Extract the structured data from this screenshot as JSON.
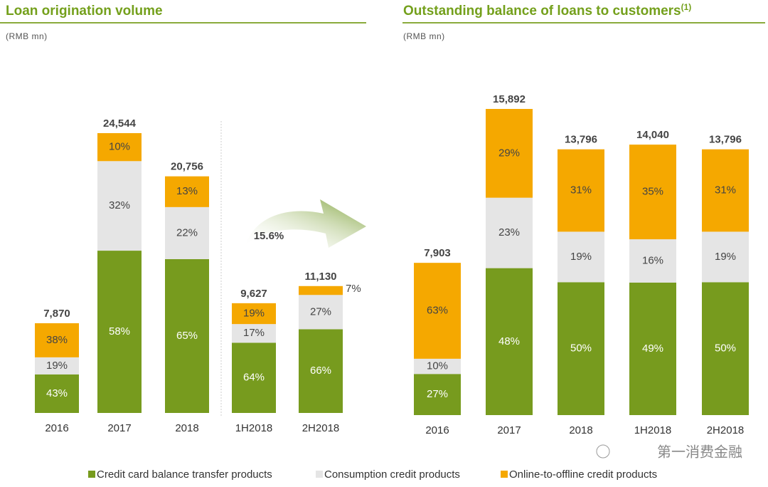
{
  "legend": [
    {
      "name": "Credit card balance transfer products",
      "color": "#779b1e"
    },
    {
      "name": "Consumption credit products",
      "color": "#e5e5e5"
    },
    {
      "name": "Online-to-offline credit products",
      "color": "#f5a800"
    }
  ],
  "watermark": "第一消费金融",
  "chart_data": [
    {
      "type": "bar",
      "title": "Loan origination volume",
      "subtitle": "(RMB mn)",
      "annotation": "15.6%",
      "categories": [
        "2016",
        "2017",
        "2018",
        "1H2018",
        "2H2018"
      ],
      "totals": [
        7870,
        24544,
        20756,
        9627,
        11130
      ],
      "total_labels": [
        "7,870",
        "24,544",
        "20,756",
        "9,627",
        "11,130"
      ],
      "series": [
        {
          "values": [
            43,
            58,
            65,
            64,
            66
          ],
          "value_labels": [
            "43%",
            "58%",
            "65%",
            "64%",
            "66%"
          ]
        },
        {
          "values": [
            19,
            32,
            22,
            17,
            27
          ],
          "value_labels": [
            "19%",
            "32%",
            "22%",
            "17%",
            "27%"
          ]
        },
        {
          "values": [
            38,
            10,
            13,
            19,
            7
          ],
          "value_labels": [
            "38%",
            "10%",
            "13%",
            "19%",
            "7%"
          ]
        }
      ]
    },
    {
      "type": "bar",
      "title": "Outstanding balance of loans to customers",
      "title_note": "(1)",
      "subtitle": "(RMB mn)",
      "categories": [
        "2016",
        "2017",
        "2018",
        "1H2018",
        "2H2018"
      ],
      "totals": [
        7903,
        15892,
        13796,
        14040,
        13796
      ],
      "total_labels": [
        "7,903",
        "15,892",
        "13,796",
        "14,040",
        "13,796"
      ],
      "series": [
        {
          "values": [
            27,
            48,
            50,
            49,
            50
          ],
          "value_labels": [
            "27%",
            "48%",
            "50%",
            "49%",
            "50%"
          ]
        },
        {
          "values": [
            10,
            23,
            19,
            16,
            19
          ],
          "value_labels": [
            "10%",
            "23%",
            "19%",
            "16%",
            "19%"
          ]
        },
        {
          "values": [
            63,
            29,
            31,
            35,
            31
          ],
          "value_labels": [
            "63%",
            "29%",
            "31%",
            "35%",
            "31%"
          ]
        }
      ]
    }
  ]
}
